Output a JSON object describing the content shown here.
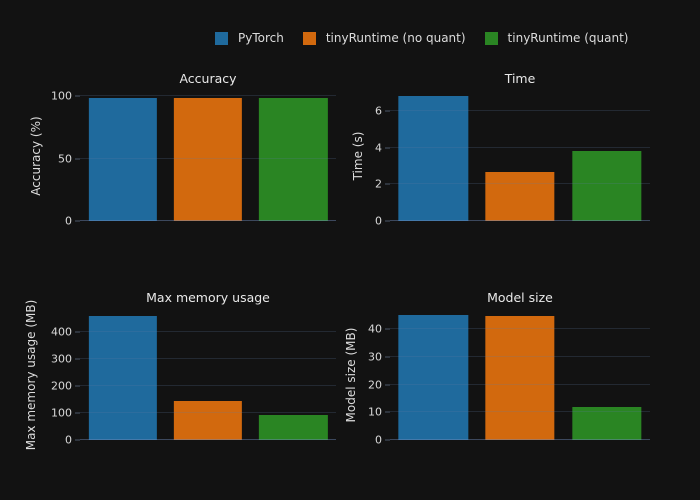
{
  "colors": {
    "background": "#121212",
    "series": [
      "#1f6a9d",
      "#d2690e",
      "#2a8523"
    ],
    "grid": "rgba(96,122,166,0.22)",
    "axis_text": "#d9d9d9",
    "title_text": "#e9e9e9"
  },
  "legend": {
    "position": "top-center",
    "items": [
      {
        "label": "PyTorch",
        "color": "#1f6a9d"
      },
      {
        "label": "tinyRuntime (no quant)",
        "color": "#d2690e"
      },
      {
        "label": "tinyRuntime (quant)",
        "color": "#2a8523"
      }
    ]
  },
  "chart_data": [
    {
      "type": "bar",
      "title": "Accuracy",
      "ylabel": "Accuracy (%)",
      "categories": [
        "PyTorch",
        "tinyRuntime (no quant)",
        "tinyRuntime (quant)"
      ],
      "values": [
        99,
        99,
        99
      ],
      "yticks": [
        0,
        50,
        100
      ],
      "ylim": [
        0,
        105
      ],
      "grid": true
    },
    {
      "type": "bar",
      "title": "Time",
      "ylabel": "Time (s)",
      "categories": [
        "PyTorch",
        "tinyRuntime (no quant)",
        "tinyRuntime (quant)"
      ],
      "values": [
        6.8,
        2.65,
        3.8
      ],
      "yticks": [
        0,
        2,
        4,
        6
      ],
      "ylim": [
        0,
        7.15
      ],
      "grid": true
    },
    {
      "type": "bar",
      "title": "Max memory usage",
      "ylabel": "Max memory usage (MB)",
      "categories": [
        "PyTorch",
        "tinyRuntime (no quant)",
        "tinyRuntime (quant)"
      ],
      "values": [
        462,
        144,
        92
      ],
      "yticks": [
        0,
        100,
        200,
        300,
        400
      ],
      "ylim": [
        0,
        487
      ],
      "grid": true
    },
    {
      "type": "bar",
      "title": "Model size",
      "ylabel": "Model size (MB)",
      "categories": [
        "PyTorch",
        "tinyRuntime (no quant)",
        "tinyRuntime (quant)"
      ],
      "values": [
        45,
        44.8,
        12
      ],
      "yticks": [
        0,
        10,
        20,
        30,
        40
      ],
      "ylim": [
        0,
        47.3
      ],
      "grid": true
    }
  ]
}
